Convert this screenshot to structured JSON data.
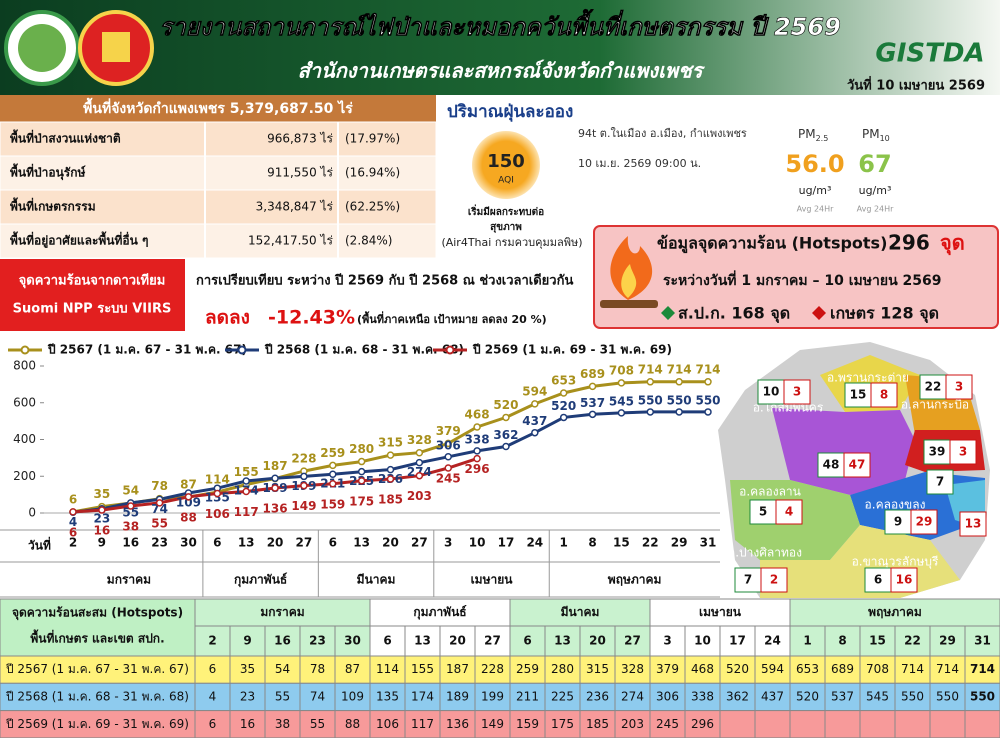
{
  "header": {
    "title": "รายงานสถานการณ์ไฟป่าและหมอกควันพื้นที่เกษตรกรรม ปี 2569",
    "subtitle": "สำนักงานเกษตรและสหกรณ์จังหวัดกำแพงเพชร",
    "logo_text": "GISTDA",
    "date": "วันที่ 10 เมษายน 2569"
  },
  "area_table": {
    "title": "พื้นที่จังหวัดกำแพงเพชร 5,379,687.50 ไร่",
    "rows": [
      [
        "พื้นที่ป่าสงวนแห่งชาติ",
        "966,873 ไร่",
        "(17.97%)"
      ],
      [
        "พื้นที่ป่าอนุรักษ์",
        "911,550 ไร่",
        "(16.94%)"
      ],
      [
        "พื้นที่เกษตรกรรม",
        "3,348,847 ไร่",
        "(62.25%)"
      ],
      [
        "พื้นที่อยู่อาศัยและพื้นที่อื่น ๆ",
        "152,417.50 ไร่",
        "(2.84%)"
      ]
    ]
  },
  "pm": {
    "title": "ปริมาณฝุ่นละออง",
    "station": "94t ต.ในเมือง อ.เมือง, กำแพงเพชร",
    "time": "10 เม.ย. 2569 09:00 น.",
    "aqi": 150,
    "aqi_unit": "AQI",
    "status_line1": "เริ่มมีผลกระทบต่อ",
    "status_line2": "สุขภาพ",
    "source": "(Air4Thai กรมควบคุมมลพิษ)",
    "pm25": {
      "label": "PM",
      "sub": "2.5",
      "value": "56.0",
      "unit": "ug/m³",
      "note": "Avg 24Hr"
    },
    "pm10": {
      "label": "PM",
      "sub": "10",
      "value": 67,
      "unit": "ug/m³",
      "note": "Avg 24Hr"
    }
  },
  "hotspots": {
    "title": "ข้อมูลจุดความร้อน (Hotspots)",
    "total": 296,
    "unit": "จุด",
    "period": "ระหว่างวันที่ 1 มกราคม – 10 เมษายน 2569",
    "spk": "ส.ป.ก. 168 จุด",
    "kaset": "เกษตร 128 จุด"
  },
  "satellite": {
    "line1": "จุดความร้อนจากดาวเทียม",
    "line2": "Suomi NPP ระบบ VIIRS"
  },
  "comparison": {
    "text": "การเปรียบเทียบ ระหว่าง ปี 2569 กับ ปี 2568 ณ ช่วงเวลาเดียวกัน",
    "change_label": "ลดลง",
    "change": "-12.43%",
    "note": "(พื้นที่ภาคเหนือ เป้าหมาย ลดลง 20 %)"
  },
  "chart_data": {
    "type": "line",
    "x_label": "วันที่",
    "categories": [
      2,
      9,
      16,
      23,
      30,
      6,
      13,
      20,
      27,
      6,
      13,
      20,
      27,
      3,
      10,
      17,
      24,
      1,
      8,
      15,
      22,
      29,
      31
    ],
    "x_groups": [
      {
        "label": "มกราคม",
        "span": 5
      },
      {
        "label": "กุมภาพันธ์",
        "span": 4
      },
      {
        "label": "มีนาคม",
        "span": 4
      },
      {
        "label": "เมษายน",
        "span": 4
      },
      {
        "label": "พฤษภาคม",
        "span": 6
      }
    ],
    "series": [
      {
        "name": "ปี 2567 (1 ม.ค. 67 - 31 พ.ค. 67)",
        "color": "#a8901c",
        "row_color": "#fff27a",
        "values": [
          6,
          35,
          54,
          78,
          87,
          114,
          155,
          187,
          228,
          259,
          280,
          315,
          328,
          379,
          468,
          520,
          594,
          653,
          689,
          708,
          714,
          714,
          714
        ]
      },
      {
        "name": "ปี 2568 (1 ม.ค. 68 - 31 พ.ค. 68)",
        "color": "#1f3c78",
        "row_color": "#8ecbee",
        "values": [
          4,
          23,
          55,
          74,
          109,
          135,
          174,
          189,
          199,
          211,
          225,
          236,
          274,
          306,
          338,
          362,
          437,
          520,
          537,
          545,
          550,
          550,
          550
        ]
      },
      {
        "name": "ปี 2569 (1 ม.ค. 69 - 31 พ.ค. 69)",
        "color": "#b52222",
        "row_color": "#f79a9a",
        "values": [
          6,
          16,
          38,
          55,
          88,
          106,
          117,
          136,
          149,
          159,
          175,
          185,
          203,
          245,
          296,
          null,
          null,
          null,
          null,
          null,
          null,
          null,
          null
        ]
      }
    ],
    "ylim": [
      0,
      800
    ],
    "yticks": [
      0,
      200,
      400,
      600,
      800
    ],
    "grid": false,
    "legend": "top"
  },
  "table": {
    "header_line1": "จุดความร้อนสะสม (Hotspots)",
    "header_line2": "พื้นที่เกษตร และเขต สปก."
  },
  "map": {
    "districts": [
      {
        "name": "อ.โกสัมพีนคร",
        "spk": 10,
        "kaset": 3
      },
      {
        "name": "อ.พรานกระต่าย",
        "spk": 15,
        "kaset": 8
      },
      {
        "name": "อ.ลานกระบือ",
        "spk": 22,
        "kaset": 3
      },
      {
        "name": null,
        "spk": 39,
        "kaset": 3
      },
      {
        "name": null,
        "spk": 48,
        "kaset": 47
      },
      {
        "name": "อ.คลองลาน",
        "spk": 5,
        "kaset": 4
      },
      {
        "name": null,
        "spk": 7,
        "kaset": null
      },
      {
        "name": "อ.คลองขลุง",
        "spk": 9,
        "kaset": 29
      },
      {
        "name": null,
        "spk": null,
        "kaset": 13
      },
      {
        "name": "อ.ปางศิลาทอง",
        "spk": 7,
        "kaset": 2
      },
      {
        "name": "อ.ขาณุวรลักษบุรี",
        "spk": 6,
        "kaset": 16
      }
    ]
  }
}
